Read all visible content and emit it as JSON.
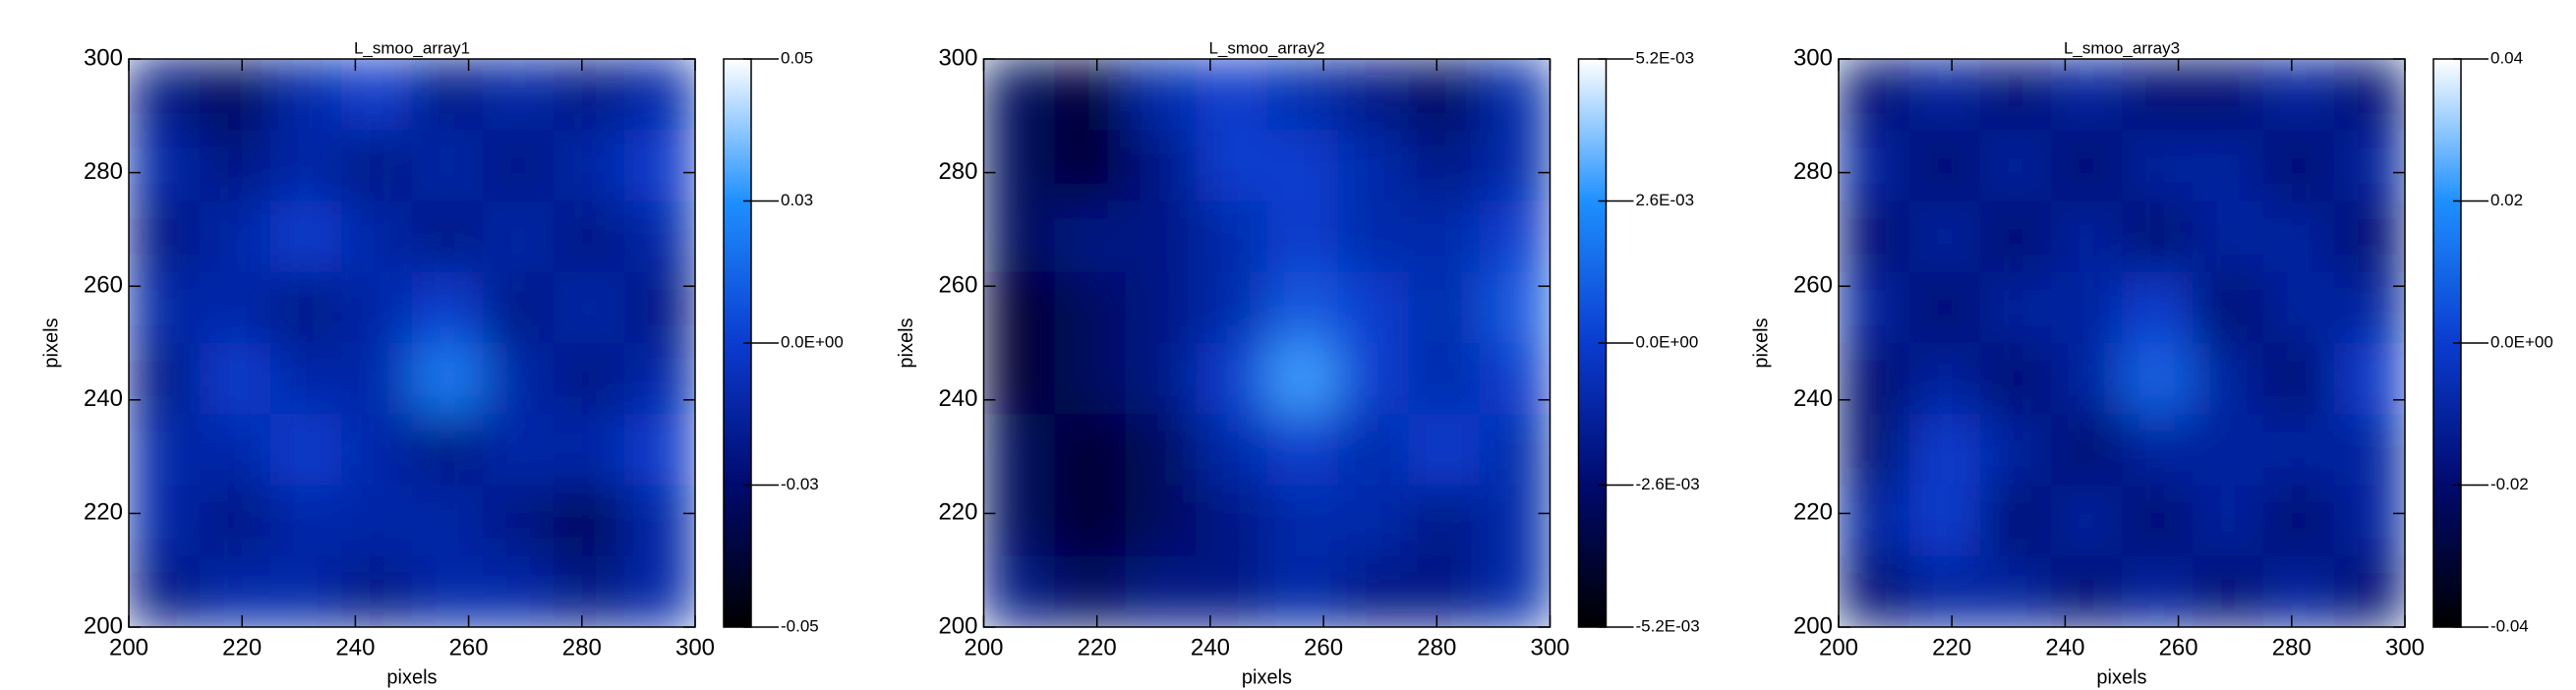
{
  "chart_data": [
    {
      "type": "heatmap",
      "title": "L_smoo_array1",
      "xlabel": "pixels",
      "ylabel": "pixels",
      "xlim": [
        200,
        300
      ],
      "xticks": [
        200,
        220,
        240,
        260,
        280,
        300
      ],
      "ylim": [
        200,
        300
      ],
      "yticks": [
        200,
        220,
        240,
        260,
        280,
        300
      ],
      "zlim": [
        -0.05,
        0.05
      ],
      "cticks": [
        -0.05,
        {
          "value": -0.025,
          "label": "-0.03"
        },
        {
          "value": 0,
          "label": "0.0E+00"
        },
        {
          "value": 0.025,
          "label": "0.03"
        },
        0.05
      ],
      "colormap": [
        "#000000",
        "#000a6e",
        "#0a3ccf",
        "#1e90ff",
        "#ffffff"
      ],
      "z": [
        [
          -0.02,
          -0.03,
          -0.01,
          0.0,
          -0.02,
          -0.01,
          -0.02,
          -0.01
        ],
        [
          -0.01,
          -0.02,
          -0.01,
          -0.02,
          -0.01,
          -0.02,
          -0.01,
          0.0
        ],
        [
          -0.02,
          -0.01,
          0.0,
          -0.01,
          -0.02,
          -0.01,
          -0.02,
          -0.01
        ],
        [
          -0.01,
          -0.01,
          -0.02,
          -0.01,
          0.0,
          -0.02,
          -0.01,
          -0.02
        ],
        [
          -0.02,
          0.0,
          -0.01,
          -0.01,
          0.02,
          -0.01,
          -0.02,
          -0.01
        ],
        [
          -0.01,
          -0.01,
          0.0,
          -0.01,
          -0.02,
          -0.01,
          -0.01,
          0.0
        ],
        [
          -0.01,
          -0.02,
          -0.01,
          -0.01,
          -0.01,
          -0.02,
          -0.03,
          -0.01
        ],
        [
          -0.02,
          -0.01,
          -0.01,
          -0.02,
          -0.01,
          -0.01,
          -0.02,
          -0.01
        ]
      ]
    },
    {
      "type": "heatmap",
      "title": "L_smoo_array2",
      "xlabel": "pixels",
      "ylabel": "pixels",
      "xlim": [
        200,
        300
      ],
      "xticks": [
        200,
        220,
        240,
        260,
        280,
        300
      ],
      "ylim": [
        200,
        300
      ],
      "yticks": [
        200,
        220,
        240,
        260,
        280,
        300
      ],
      "zlim": [
        -0.0052,
        0.0052
      ],
      "cticks": [
        {
          "value": -0.0052,
          "label": "-5.2E-03"
        },
        {
          "value": -0.0026,
          "label": "-2.6E-03"
        },
        {
          "value": 0,
          "label": "0.0E+00"
        },
        {
          "value": 0.0026,
          "label": "2.6E-03"
        },
        {
          "value": 0.0052,
          "label": "5.2E-03"
        }
      ],
      "colormap": [
        "#000000",
        "#000a6e",
        "#0a3ccf",
        "#1e90ff",
        "#ffffff"
      ],
      "z": [
        [
          -0.003,
          -0.004,
          -0.001,
          0.0,
          -0.001,
          -0.002,
          -0.003,
          -0.001
        ],
        [
          -0.003,
          -0.004,
          -0.002,
          0.0,
          0.0,
          -0.001,
          -0.002,
          -0.001
        ],
        [
          -0.003,
          -0.002,
          -0.002,
          -0.001,
          0.0,
          -0.001,
          -0.001,
          0.0
        ],
        [
          -0.004,
          -0.003,
          -0.002,
          -0.001,
          0.001,
          0.0,
          -0.001,
          0.001
        ],
        [
          -0.004,
          -0.003,
          -0.002,
          0.0,
          0.003,
          0.0,
          -0.001,
          0.0
        ],
        [
          -0.003,
          -0.004,
          -0.003,
          -0.001,
          0.0,
          -0.001,
          0.0,
          -0.001
        ],
        [
          -0.003,
          -0.004,
          -0.003,
          -0.002,
          -0.001,
          -0.001,
          -0.002,
          -0.001
        ],
        [
          -0.002,
          -0.003,
          -0.002,
          -0.002,
          -0.001,
          -0.002,
          -0.002,
          -0.001
        ]
      ]
    },
    {
      "type": "heatmap",
      "title": "L_smoo_array3",
      "xlabel": "pixels",
      "ylabel": "pixels",
      "xlim": [
        200,
        300
      ],
      "xticks": [
        200,
        220,
        240,
        260,
        280,
        300
      ],
      "ylim": [
        200,
        300
      ],
      "yticks": [
        200,
        220,
        240,
        260,
        280,
        300
      ],
      "zlim": [
        -0.04,
        0.04
      ],
      "cticks": [
        -0.04,
        -0.02,
        {
          "value": 0,
          "label": "0.0E+00"
        },
        0.02,
        0.04
      ],
      "colormap": [
        "#000000",
        "#000a6e",
        "#0a3ccf",
        "#1e90ff",
        "#ffffff"
      ],
      "z": [
        [
          -0.02,
          -0.01,
          -0.02,
          -0.01,
          -0.02,
          -0.02,
          -0.01,
          -0.02
        ],
        [
          -0.01,
          -0.02,
          -0.01,
          -0.02,
          -0.01,
          -0.01,
          -0.02,
          -0.01
        ],
        [
          -0.02,
          -0.01,
          -0.02,
          -0.01,
          -0.02,
          -0.01,
          -0.01,
          -0.02
        ],
        [
          -0.01,
          -0.02,
          -0.01,
          -0.01,
          0.0,
          -0.02,
          -0.01,
          -0.01
        ],
        [
          -0.02,
          -0.01,
          -0.02,
          -0.01,
          0.01,
          -0.01,
          -0.02,
          0.0
        ],
        [
          -0.02,
          0.0,
          -0.01,
          -0.02,
          -0.01,
          -0.01,
          -0.01,
          -0.01
        ],
        [
          -0.01,
          0.0,
          -0.02,
          -0.01,
          -0.02,
          -0.01,
          -0.02,
          -0.01
        ],
        [
          -0.02,
          -0.01,
          -0.01,
          -0.02,
          -0.01,
          -0.02,
          -0.01,
          -0.02
        ]
      ]
    }
  ]
}
